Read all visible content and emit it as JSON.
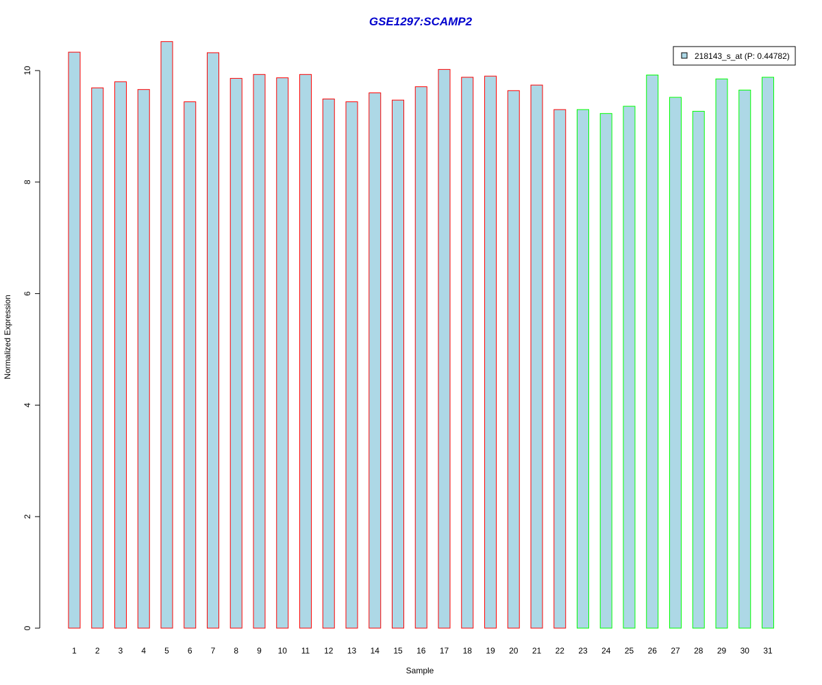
{
  "chart_data": {
    "type": "bar",
    "title": "GSE1297:SCAMP2",
    "xlabel": "Sample",
    "ylabel": "Normalized Expression",
    "ylim": [
      0,
      10.6
    ],
    "yticks": [
      0,
      2,
      4,
      6,
      8,
      10
    ],
    "grid": false,
    "legend_position": "top-right",
    "categories": [
      "1",
      "2",
      "3",
      "4",
      "5",
      "6",
      "7",
      "8",
      "9",
      "10",
      "11",
      "12",
      "13",
      "14",
      "15",
      "16",
      "17",
      "18",
      "19",
      "20",
      "21",
      "22",
      "23",
      "24",
      "25",
      "26",
      "27",
      "28",
      "29",
      "30",
      "31"
    ],
    "series": [
      {
        "name": "218143_s_at (P: 0.44782)",
        "values": [
          10.33,
          9.69,
          9.8,
          9.66,
          10.52,
          9.44,
          10.32,
          9.86,
          9.93,
          9.87,
          9.93,
          9.49,
          9.44,
          9.6,
          9.47,
          9.71,
          10.02,
          9.88,
          9.9,
          9.64,
          9.74,
          9.3,
          9.3,
          9.23,
          9.36,
          9.92,
          9.52,
          9.27,
          9.85,
          9.65,
          9.88
        ],
        "groups": [
          "a",
          "a",
          "a",
          "a",
          "a",
          "a",
          "a",
          "a",
          "a",
          "a",
          "a",
          "a",
          "a",
          "a",
          "a",
          "a",
          "a",
          "a",
          "a",
          "a",
          "a",
          "a",
          "b",
          "b",
          "b",
          "b",
          "b",
          "b",
          "b",
          "b",
          "b"
        ]
      }
    ],
    "colors": {
      "bar_fill": "#add8e6",
      "group_a_border": "#ff0000",
      "group_b_border": "#00ff00",
      "title": "#0000cd",
      "axis": "#000000"
    }
  }
}
